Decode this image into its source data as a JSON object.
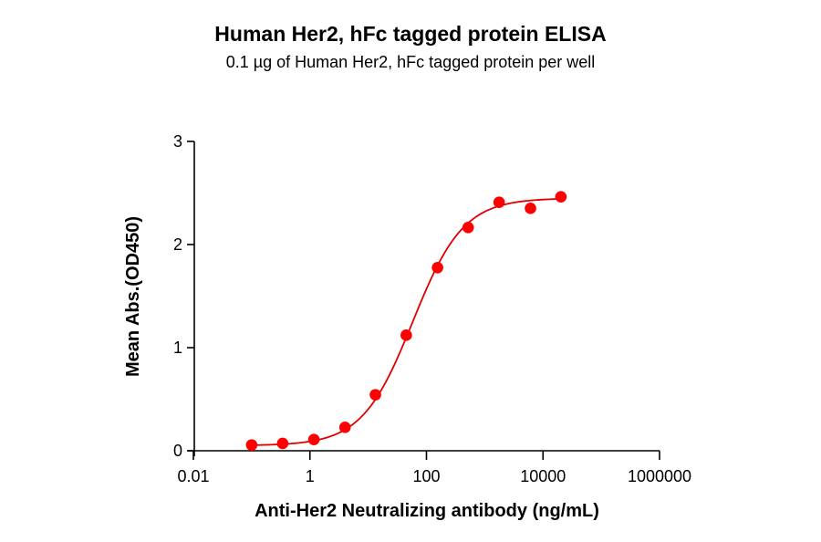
{
  "chart_data": {
    "type": "scatter",
    "title": "Human Her2, hFc tagged protein ELISA",
    "subtitle": "0.1 µg of Human Her2, hFc tagged protein per well",
    "xlabel": "Anti-Her2 Neutralizing antibody (ng/mL)",
    "ylabel": "Mean Abs.(OD450)",
    "xscale": "log",
    "xlim": [
      0.01,
      1000000
    ],
    "ylim": [
      0,
      3
    ],
    "xticks": [
      {
        "value": 0.01,
        "label": "0.01"
      },
      {
        "value": 1,
        "label": "1"
      },
      {
        "value": 100,
        "label": "100"
      },
      {
        "value": 10000,
        "label": "10000"
      },
      {
        "value": 1000000,
        "label": "1000000"
      }
    ],
    "yticks": [
      {
        "value": 0,
        "label": "0"
      },
      {
        "value": 1,
        "label": "1"
      },
      {
        "value": 2,
        "label": "2"
      },
      {
        "value": 3,
        "label": "3"
      }
    ],
    "grid": false,
    "legend": null,
    "series": [
      {
        "name": "Human Her2, hFc tagged protein",
        "color": "#FF0000",
        "marker": "circle",
        "x": [
          0.1,
          0.34,
          1.17,
          4.0,
          13.3,
          45,
          155,
          519,
          1766,
          6100,
          20280
        ],
        "y": [
          0.056,
          0.071,
          0.109,
          0.227,
          0.543,
          1.121,
          1.776,
          2.165,
          2.41,
          2.351,
          2.463
        ]
      }
    ],
    "fit": {
      "model": "4PL",
      "bottom": 0.05,
      "top": 2.45,
      "ec50": 58,
      "hill": 1.0,
      "color": "#E00000"
    }
  }
}
